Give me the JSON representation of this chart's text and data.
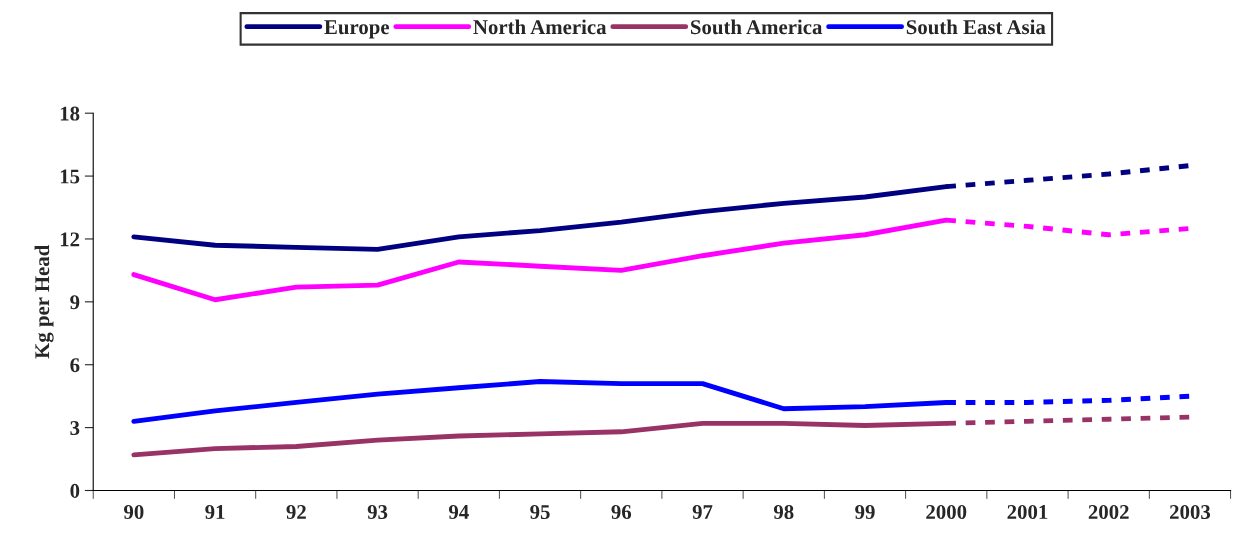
{
  "chart_data": {
    "type": "line",
    "ylabel": "Kg per Head",
    "categories": [
      "90",
      "91",
      "92",
      "93",
      "94",
      "95",
      "96",
      "97",
      "98",
      "99",
      "2000",
      "2001",
      "2002",
      "2003"
    ],
    "series": [
      {
        "name": "Europe",
        "color": "#000080",
        "line_style": "solid",
        "values": [
          12.1,
          11.7,
          11.6,
          11.5,
          12.1,
          12.4,
          12.8,
          13.3,
          13.7,
          14.0,
          14.5,
          null,
          null,
          null
        ]
      },
      {
        "name": "North America",
        "color": "#ff00ff",
        "line_style": "solid",
        "values": [
          10.3,
          9.1,
          9.7,
          9.8,
          10.9,
          10.7,
          10.5,
          11.2,
          11.8,
          12.2,
          12.9,
          null,
          null,
          null
        ]
      },
      {
        "name": "South America",
        "color": "#993366",
        "line_style": "solid",
        "values": [
          1.7,
          2.0,
          2.1,
          2.4,
          2.6,
          2.7,
          2.8,
          3.2,
          3.2,
          3.1,
          3.2,
          null,
          null,
          null
        ]
      },
      {
        "name": "South East Asia",
        "color": "#0000ff",
        "line_style": "solid",
        "values": [
          3.3,
          3.8,
          4.2,
          4.6,
          4.9,
          5.2,
          5.1,
          5.1,
          3.9,
          4.0,
          4.2,
          null,
          null,
          null
        ]
      },
      {
        "color": "#000080",
        "line_style": "dashed",
        "values": [
          null,
          null,
          null,
          null,
          null,
          null,
          null,
          null,
          null,
          null,
          14.5,
          14.8,
          15.1,
          15.5
        ]
      },
      {
        "color": "#ff00ff",
        "line_style": "dashed",
        "values": [
          null,
          null,
          null,
          null,
          null,
          null,
          null,
          null,
          null,
          null,
          12.9,
          12.6,
          12.2,
          12.5
        ]
      },
      {
        "color": "#993366",
        "line_style": "dashed",
        "values": [
          null,
          null,
          null,
          null,
          null,
          null,
          null,
          null,
          null,
          null,
          3.2,
          3.3,
          3.4,
          3.5
        ]
      },
      {
        "color": "#0000ff",
        "line_style": "dashed",
        "values": [
          null,
          null,
          null,
          null,
          null,
          null,
          null,
          null,
          null,
          null,
          4.2,
          4.2,
          4.3,
          4.5
        ]
      }
    ],
    "ylim": [
      0,
      18
    ],
    "yticks": [
      0,
      3,
      6,
      9,
      12,
      15,
      18
    ],
    "grid": false,
    "legend": "top",
    "marker": "none"
  }
}
